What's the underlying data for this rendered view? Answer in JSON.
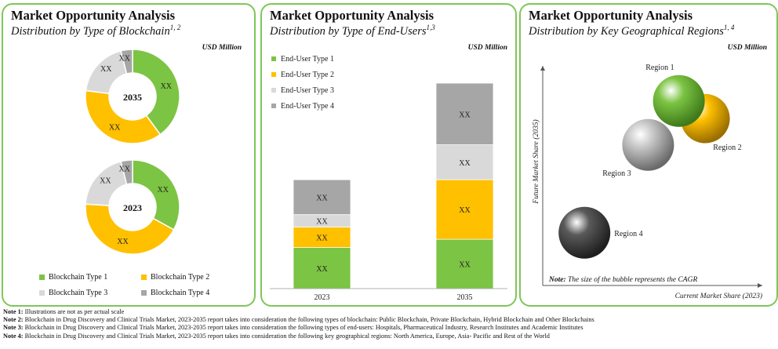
{
  "panels": {
    "blockchain": {
      "title": "Market Opportunity Analysis",
      "subtitle": "Distribution by Type of Blockchain",
      "subtitle_sup": "1, 2",
      "unit": "USD Million"
    },
    "end_users": {
      "title": "Market Opportunity Analysis",
      "subtitle": "Distribution by Type of End-Users",
      "subtitle_sup": "1,3",
      "unit": "USD Million"
    },
    "regions": {
      "title": "Market Opportunity Analysis",
      "subtitle": "Distribution by Key Geographical Regions",
      "subtitle_sup": "1, 4",
      "unit": "USD Million",
      "note_label": "Note:",
      "note_text": "The size of the bubble represents the CAGR"
    }
  },
  "colors": {
    "type1": "#7cc443",
    "type2": "#ffc000",
    "type3": "#d9d9d9",
    "type4": "#a6a6a6",
    "border": "#7fc65a"
  },
  "chart_data": [
    {
      "type": "pie",
      "variant": "donut",
      "center_label": "2035",
      "slices": [
        {
          "name": "Blockchain Type 1",
          "value": 40,
          "label": "XX"
        },
        {
          "name": "Blockchain Type 2",
          "value": 37,
          "label": "XX"
        },
        {
          "name": "Blockchain Type 3",
          "value": 19,
          "label": "XX"
        },
        {
          "name": "Blockchain Type 4",
          "value": 4,
          "label": "XX"
        }
      ]
    },
    {
      "type": "pie",
      "variant": "donut",
      "center_label": "2023",
      "slices": [
        {
          "name": "Blockchain Type 1",
          "value": 33,
          "label": "XX"
        },
        {
          "name": "Blockchain Type 2",
          "value": 43,
          "label": "XX"
        },
        {
          "name": "Blockchain Type 3",
          "value": 20,
          "label": "XX"
        },
        {
          "name": "Blockchain Type 4",
          "value": 4,
          "label": "XX"
        }
      ]
    },
    {
      "type": "bar",
      "stacked": true,
      "categories": [
        "2023",
        "2035"
      ],
      "series": [
        {
          "name": "End-User Type 1",
          "values": [
            20,
            24
          ],
          "labels": [
            "XX",
            "XX"
          ]
        },
        {
          "name": "End-User Type 2",
          "values": [
            10,
            29
          ],
          "labels": [
            "XX",
            "XX"
          ]
        },
        {
          "name": "End-User Type 3",
          "values": [
            6,
            17
          ],
          "labels": [
            "XX",
            "XX"
          ]
        },
        {
          "name": "End-User Type 4",
          "values": [
            17,
            30
          ],
          "labels": [
            "XX",
            "XX"
          ]
        }
      ]
    },
    {
      "type": "scatter",
      "variant": "bubble",
      "xlabel": "Current Market Share (2023)",
      "ylabel": "Future Market Share (2035)",
      "points": [
        {
          "name": "Region 1",
          "x": 0.62,
          "y": 0.84,
          "size": 1.0,
          "color": "#7cc443"
        },
        {
          "name": "Region 2",
          "x": 0.74,
          "y": 0.76,
          "size": 0.95,
          "color": "#ffc000"
        },
        {
          "name": "Region 3",
          "x": 0.48,
          "y": 0.64,
          "size": 1.0,
          "color": "#c8c8c8"
        },
        {
          "name": "Region 4",
          "x": 0.19,
          "y": 0.24,
          "size": 1.0,
          "color": "#5a5a5a"
        }
      ]
    }
  ],
  "legend_blockchain": [
    "Blockchain  Type 1",
    "Blockchain  Type 2",
    "Blockchain  Type 3",
    "Blockchain  Type 4"
  ],
  "notes": [
    {
      "label": "Note 1:",
      "text": " Illustrations are not as per actual scale"
    },
    {
      "label": "Note 2:",
      "text": " Blockchain in Drug Discovery and Clinical Trials Market, 2023-2035 report takes into consideration the following types of blockchain: Public Blockchain, Private Blockchain, Hybrid Blockchain and Other Blockchains"
    },
    {
      "label": "Note 3:",
      "text": " Blockchain in Drug Discovery and Clinical Trials Market, 2023-2035 report takes into consideration the following types of end-users: Hospitals, Pharmaceutical Industry, Research Institutes and Academic Institutes"
    },
    {
      "label": "Note 4:",
      "text": " Blockchain in Drug Discovery and Clinical Trials Market, 2023-2035 report takes into consideration the following key geographical regions: North America, Europe, Asia- Pacific and Rest of the World"
    }
  ]
}
